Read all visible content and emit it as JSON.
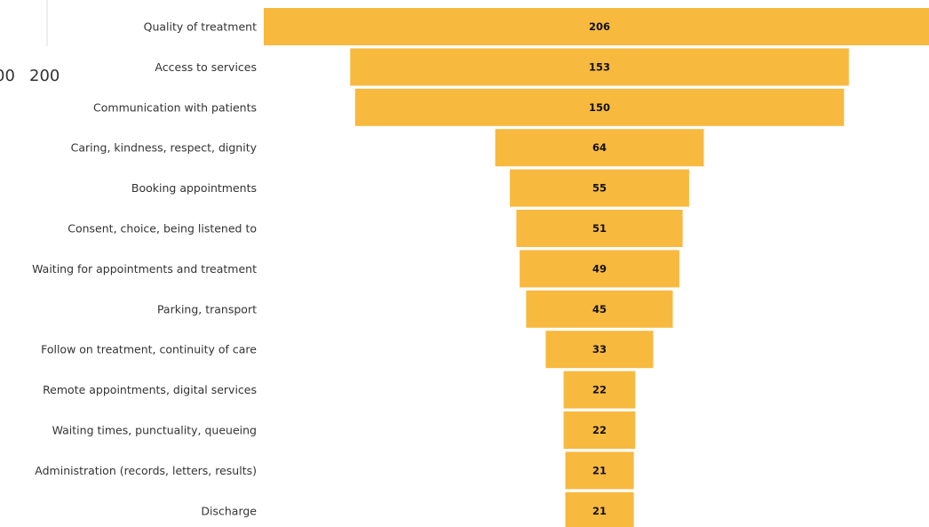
{
  "chart_data": {
    "type": "bar",
    "subtype": "funnel",
    "orientation": "horizontal",
    "title": "",
    "xlabel": "",
    "ylabel": "",
    "categories": [
      "Quality of treatment",
      "Access to services",
      "Communication with patients",
      "Caring, kindness, respect, dignity",
      "Booking appointments",
      "Consent, choice, being listened to",
      "Waiting for appointments and treatment",
      "Parking, transport",
      "Follow on treatment, continuity of care",
      "Remote appointments, digital services",
      "Waiting times, punctuality, queueing",
      "Administration (records, letters, results)",
      "Discharge"
    ],
    "values": [
      206,
      153,
      150,
      64,
      55,
      51,
      49,
      45,
      33,
      22,
      22,
      21,
      21
    ],
    "bar_color": "#F8B93F",
    "data_labels": true,
    "grid": false,
    "partial_axis_ticks": [
      "00",
      "200"
    ]
  }
}
